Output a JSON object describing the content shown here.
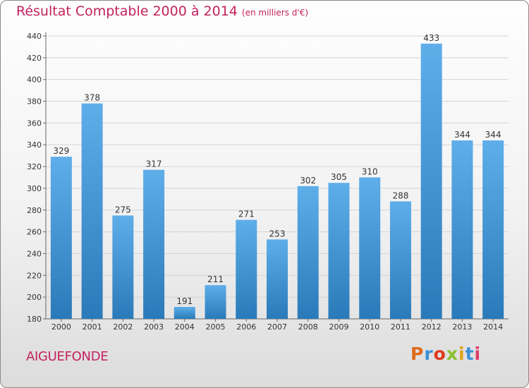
{
  "header": {
    "title": "Résultat Comptable 2000 à 2014",
    "subtitle": "(en milliers d'€)"
  },
  "footer": {
    "commune": "AIGUEFONDE",
    "logo": "Proxiti"
  },
  "colors": {
    "title": "#c3225d",
    "bar_light": "#5eaeea",
    "bar_dark": "#2a7ab9",
    "logo_letters": [
      "#e06a1b",
      "#3a8fd6",
      "#e0391b",
      "#8abf2f",
      "#e0a21b",
      "#3a8fd6",
      "#e03a6a"
    ]
  },
  "chart_data": {
    "type": "bar",
    "categories": [
      "2000",
      "2001",
      "2002",
      "2003",
      "2004",
      "2005",
      "2006",
      "2007",
      "2008",
      "2009",
      "2010",
      "2011",
      "2012",
      "2013",
      "2014"
    ],
    "values": [
      329,
      378,
      275,
      317,
      191,
      211,
      271,
      253,
      302,
      305,
      310,
      288,
      433,
      344,
      344
    ],
    "title": "Résultat Comptable 2000 à 2014",
    "subtitle": "(en milliers d'€)",
    "xlabel": "",
    "ylabel": "",
    "ylim": [
      180,
      440
    ],
    "yticks": [
      180,
      200,
      220,
      240,
      260,
      280,
      300,
      320,
      340,
      360,
      380,
      400,
      420,
      440
    ],
    "grid": true,
    "data_labels": true
  }
}
